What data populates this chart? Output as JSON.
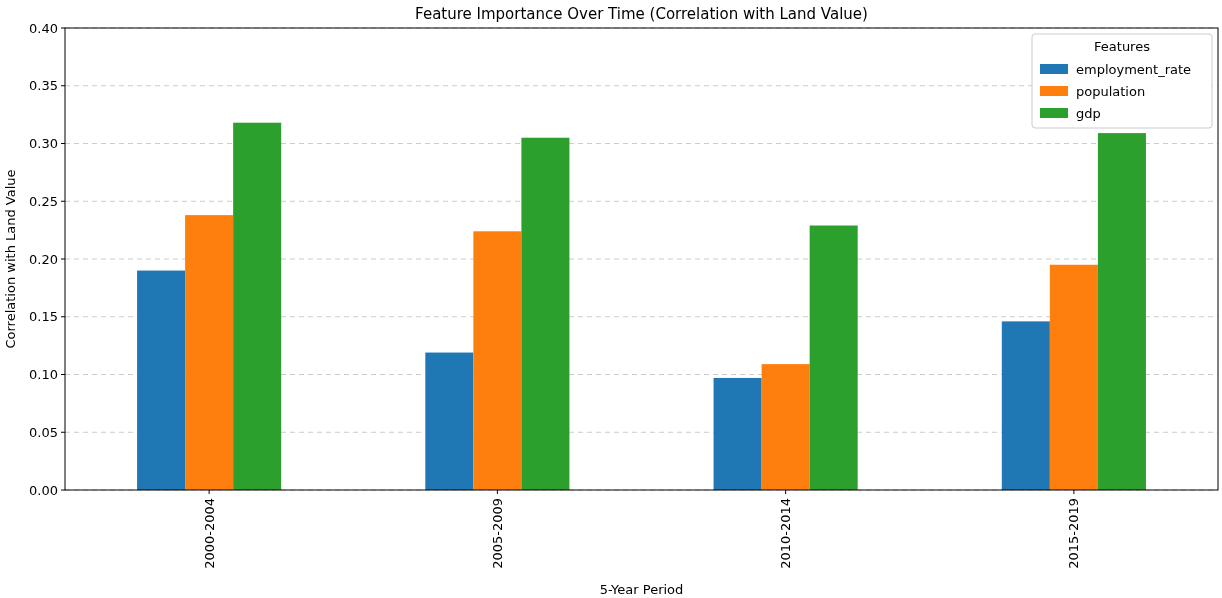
{
  "chart_data": {
    "type": "bar",
    "title": "Feature Importance Over Time (Correlation with Land Value)",
    "xlabel": "5-Year Period",
    "ylabel": "Correlation with Land Value",
    "legend_title": "Features",
    "legend": "top right",
    "grid": "y",
    "categories": [
      "2000-2004",
      "2005-2009",
      "2010-2014",
      "2015-2019"
    ],
    "series": [
      {
        "name": "employment_rate",
        "color": "#1f77b4",
        "values": [
          0.19,
          0.119,
          0.097,
          0.146
        ]
      },
      {
        "name": "population",
        "color": "#ff7f0e",
        "values": [
          0.238,
          0.224,
          0.109,
          0.195
        ]
      },
      {
        "name": "gdp",
        "color": "#2ca02c",
        "values": [
          0.318,
          0.305,
          0.229,
          0.309
        ]
      }
    ],
    "ylim": [
      0,
      0.4
    ],
    "yticks": [
      {
        "value": 0,
        "label": "0.00"
      },
      {
        "value": 0.05,
        "label": "0.05"
      },
      {
        "value": 0.1,
        "label": "0.10"
      },
      {
        "value": 0.15,
        "label": "0.15"
      },
      {
        "value": 0.2,
        "label": "0.20"
      },
      {
        "value": 0.25,
        "label": "0.25"
      },
      {
        "value": 0.3,
        "label": "0.30"
      },
      {
        "value": 0.35,
        "label": "0.35"
      },
      {
        "value": 0.4,
        "label": "0.40"
      }
    ]
  }
}
